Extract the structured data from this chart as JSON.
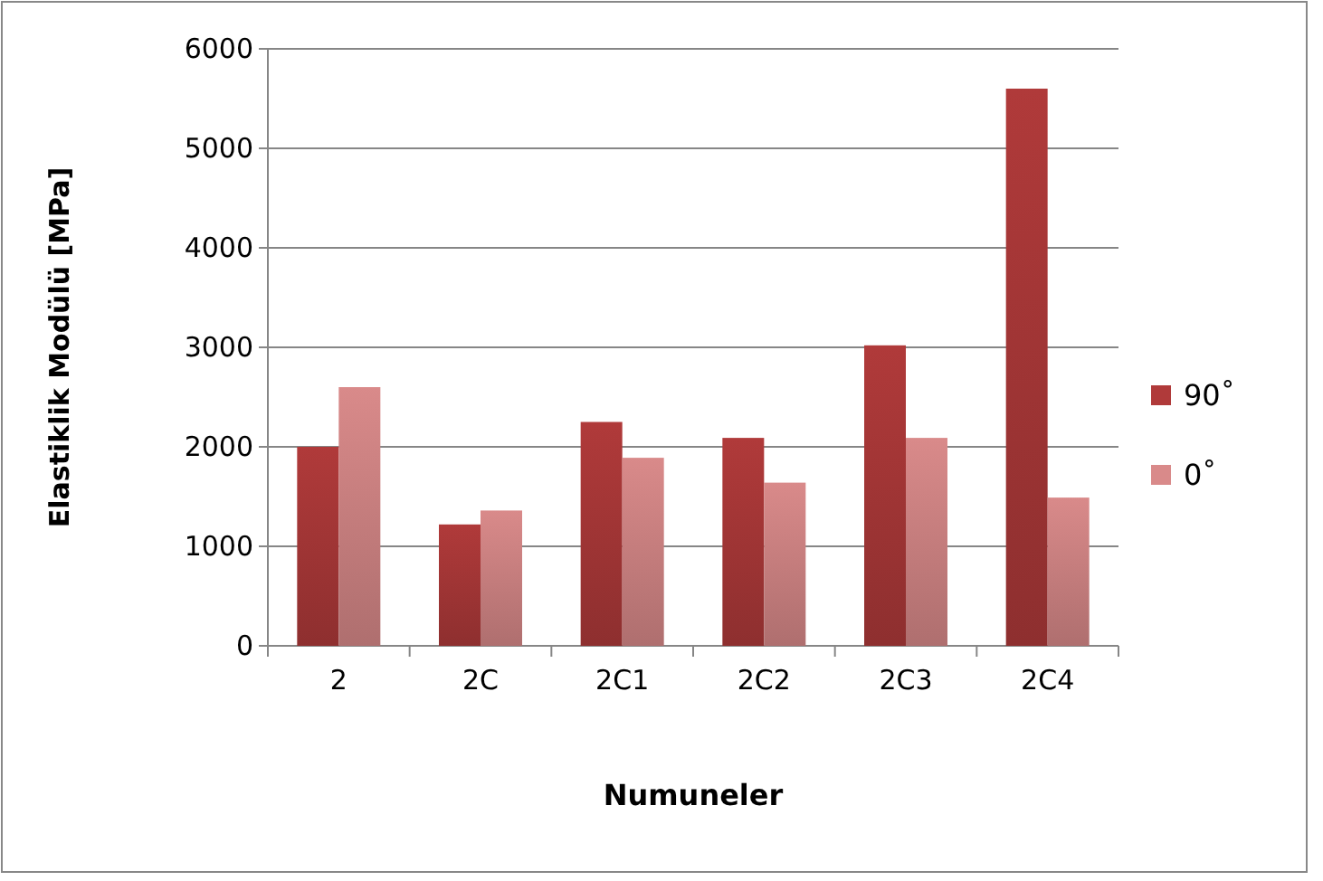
{
  "chart_data": {
    "type": "bar",
    "xlabel": "Numuneler",
    "ylabel": "Elastiklik Modülü [MPa]",
    "categories": [
      "2",
      "2C",
      "2C1",
      "2C2",
      "2C3",
      "2C4"
    ],
    "series": [
      {
        "name": "90˚",
        "color": "#b03a3a",
        "values": [
          2000,
          1220,
          2250,
          2090,
          3020,
          5600
        ]
      },
      {
        "name": "0˚",
        "color": "#d98a8a",
        "values": [
          2600,
          1360,
          1890,
          1640,
          2090,
          1490
        ]
      }
    ],
    "ylim": [
      0,
      6000
    ],
    "yticks": [
      0,
      1000,
      2000,
      3000,
      4000,
      5000,
      6000
    ],
    "grid": "y",
    "legend": "right"
  }
}
